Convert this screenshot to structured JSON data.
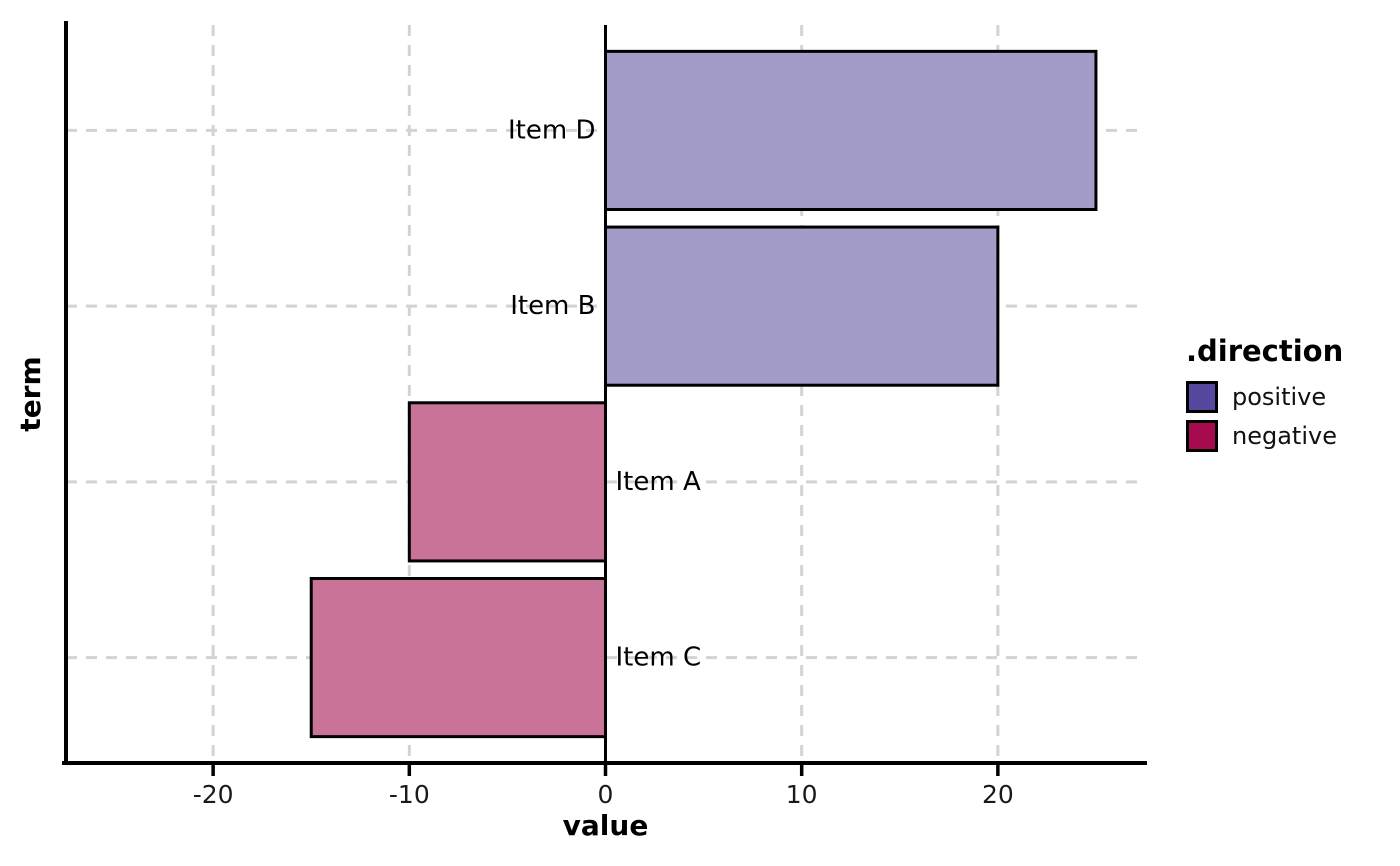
{
  "chart_data": {
    "type": "bar",
    "orientation": "horizontal",
    "title": "",
    "xlabel": "value",
    "ylabel": "term",
    "categories": [
      "Item D",
      "Item B",
      "Item A",
      "Item C"
    ],
    "series": [
      {
        "name": ".direction",
        "items": [
          {
            "term": "Item D",
            "value": 25,
            "direction": "positive"
          },
          {
            "term": "Item B",
            "value": 20,
            "direction": "positive"
          },
          {
            "term": "Item A",
            "value": -10,
            "direction": "negative"
          },
          {
            "term": "Item C",
            "value": -15,
            "direction": "negative"
          }
        ]
      }
    ],
    "x_ticks": [
      -20,
      -10,
      0,
      10,
      20
    ],
    "x_tick_labels": [
      "-20",
      "-10",
      "0",
      "10",
      "20"
    ],
    "xlim": [
      -27.5,
      27.5
    ],
    "grid": "dashed",
    "zero_line": true,
    "legend_position": "right"
  },
  "legend": {
    "title": ".direction",
    "entries": [
      {
        "label": "positive",
        "direction": "positive"
      },
      {
        "label": "negative",
        "direction": "negative"
      }
    ]
  },
  "axes": {
    "x_title": "value",
    "y_title": "term"
  },
  "colors": {
    "positive_fill": "#a39cc9",
    "negative_fill": "#ca7399",
    "positive_key": "#55489e",
    "negative_key": "#a50b4e",
    "bar_stroke": "#000000",
    "gridline": "#d3d3d3",
    "axis_line": "#000000",
    "zero_line": "#000000",
    "tick_text": "#1a1a1a",
    "label_text": "#000000",
    "background": "#ffffff"
  }
}
